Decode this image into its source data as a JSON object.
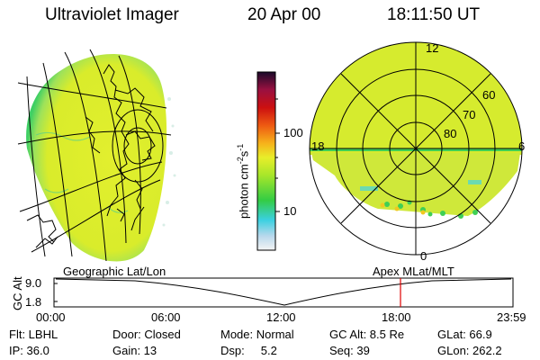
{
  "header": {
    "title": "Ultraviolet Imager",
    "date": "20 Apr 00",
    "time": "18:11:50 UT"
  },
  "colorbar": {
    "unit": "photon cm",
    "exp1": "-2",
    "mid": "s",
    "exp2": "-1",
    "ticks": [
      {
        "label": "100"
      },
      {
        "label": "10"
      }
    ]
  },
  "polar": {
    "mlt_labels": [
      "12",
      "18",
      "6",
      "0"
    ],
    "lat_labels": [
      "60",
      "70",
      "80"
    ]
  },
  "panels": {
    "left_label": "Geographic Lat/Lon",
    "right_label": "Apex MLat/MLT"
  },
  "altitude": {
    "axis_label": "GC Alt",
    "ticks": [
      "9.0",
      "1.8"
    ],
    "time_ticks": [
      "00:00",
      "06:00",
      "12:00",
      "18:00",
      "23:59"
    ],
    "marker_time": "18:11:50",
    "marker_color": "#e00000"
  },
  "info": {
    "flt": "Flt: LBHL",
    "door": "Door: Closed",
    "mode": "Mode: Normal",
    "gcalt": "GC Alt: 8.5 Re",
    "glat": "GLat:  66.9",
    "ip": "IP: 36.0",
    "gain": "Gain: 13",
    "dsp": "Dsp:     5.2",
    "seq": "Seq: 39",
    "glon": "GLon: 262.2"
  },
  "colors": {
    "foreground": "#000000",
    "background": "#ffffff",
    "aurora_main": "#d8ec2a",
    "aurora_green": "#3fcf55",
    "aurora_cyan": "#52d6d0"
  }
}
